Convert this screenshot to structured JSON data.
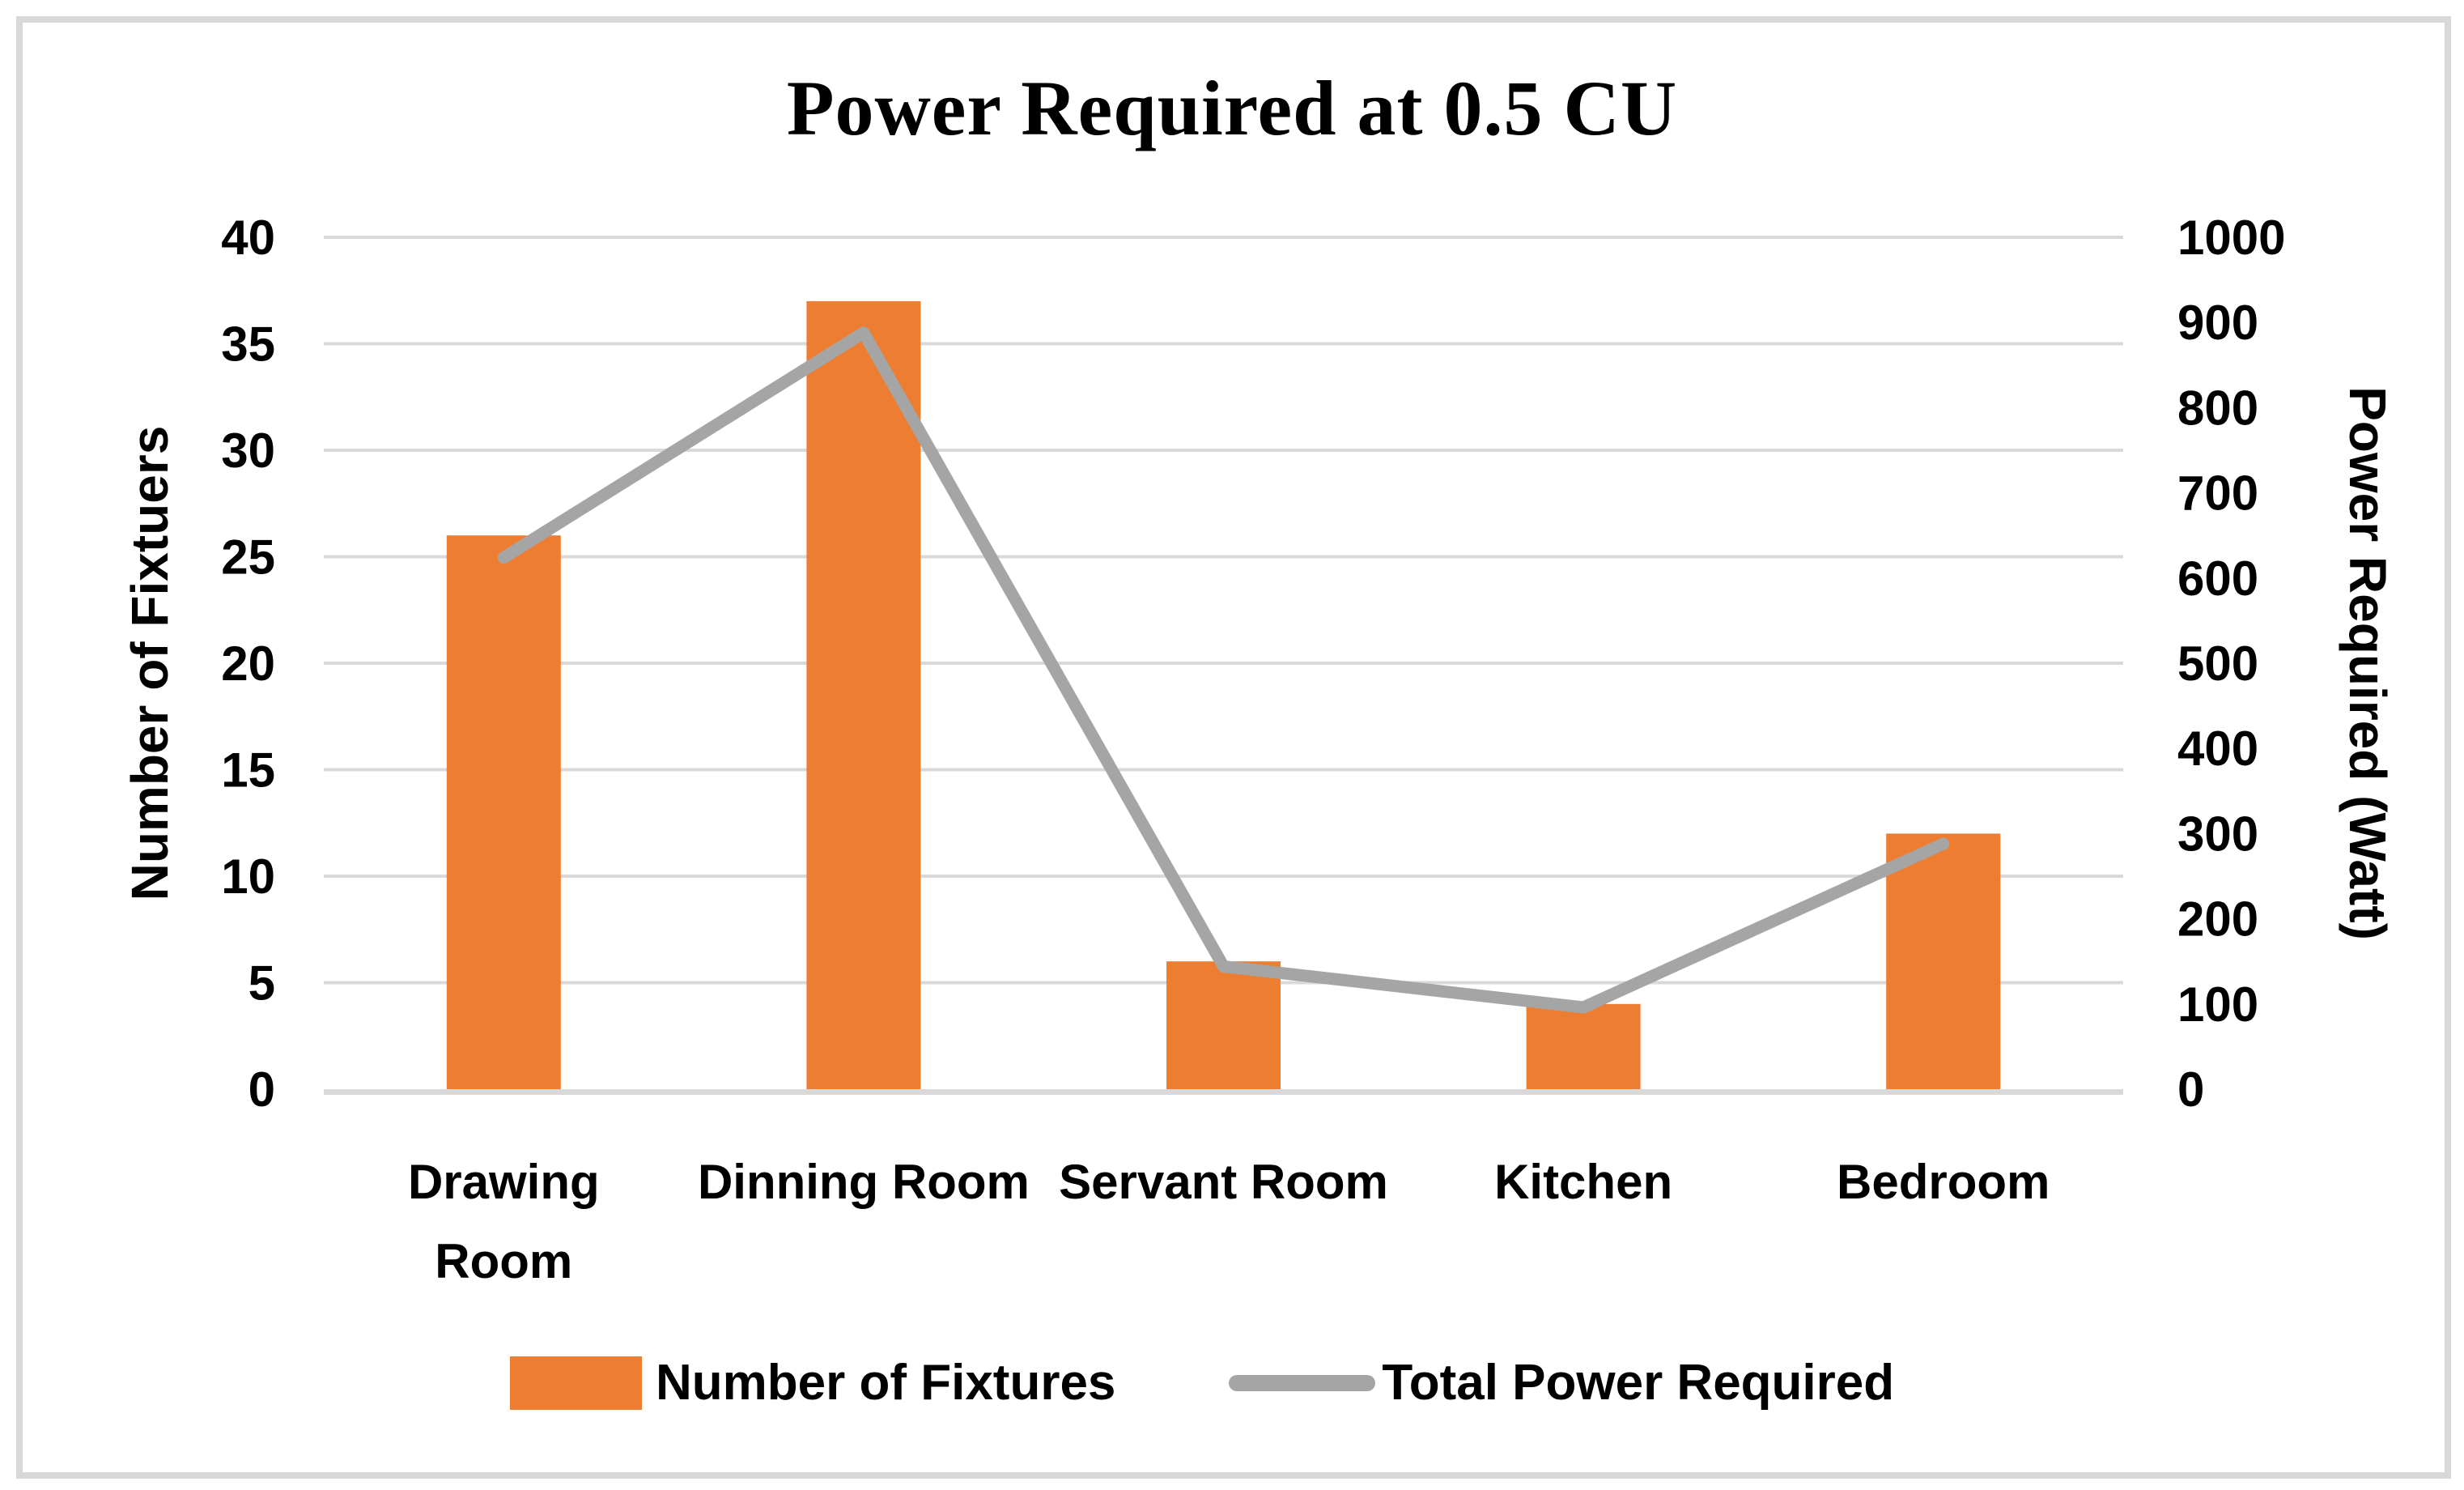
{
  "chart_data": {
    "type": "combo-bar-line",
    "title": "Power Required at 0.5 CU",
    "categories": [
      "Drawing Room",
      "Dinning Room",
      "Servant Room",
      "Kitchen",
      "Bedroom"
    ],
    "category_display": [
      [
        "Drawing",
        "Room"
      ],
      [
        "Dinning Room"
      ],
      [
        "Servant Room"
      ],
      [
        "Kitchen"
      ],
      [
        "Bedroom"
      ]
    ],
    "series": [
      {
        "name": "Number of Fixtures",
        "chart": "bar",
        "axis": "left",
        "color": "#ED7D31",
        "values": [
          26,
          37,
          6,
          4,
          12
        ]
      },
      {
        "name": "Total Power Required",
        "chart": "line",
        "axis": "right",
        "color": "#A5A5A5",
        "values": [
          624,
          888,
          144,
          96,
          288
        ]
      }
    ],
    "left_axis": {
      "title": "Number of Fixtuers",
      "min": 0,
      "max": 40,
      "tick_step": 5,
      "tick_labels": [
        "0",
        "5",
        "10",
        "15",
        "20",
        "25",
        "30",
        "35",
        "40"
      ]
    },
    "right_axis": {
      "title": "Power Required (Watt)",
      "min": 0,
      "max": 1000,
      "tick_step": 100,
      "tick_labels": [
        "0",
        "100",
        "200",
        "300",
        "400",
        "500",
        "600",
        "700",
        "800",
        "900",
        "1000"
      ]
    },
    "grid": true,
    "gridline_color": "#D9D9D9",
    "legend_position": "bottom"
  },
  "legend": {
    "items": [
      {
        "label": "Number of Fixtures",
        "swatch": "bar",
        "color": "#ED7D31"
      },
      {
        "label": "Total Power Required",
        "swatch": "line",
        "color": "#A5A5A5"
      }
    ]
  }
}
